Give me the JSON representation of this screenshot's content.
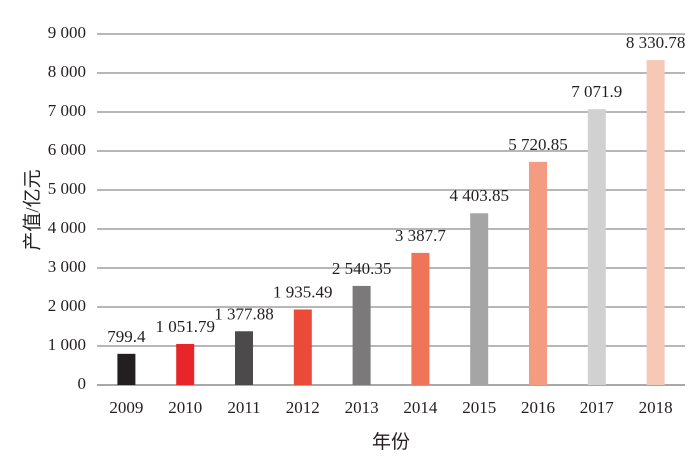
{
  "chart_data": {
    "type": "bar",
    "title": "",
    "xlabel": "年份",
    "ylabel": "产值/亿元",
    "categories": [
      "2009",
      "2010",
      "2011",
      "2012",
      "2013",
      "2014",
      "2015",
      "2016",
      "2017",
      "2018"
    ],
    "values": [
      799.4,
      1051.79,
      1377.88,
      1935.49,
      2540.35,
      3387.7,
      4403.85,
      5720.85,
      7071.9,
      8330.78
    ],
    "data_labels": [
      "799.4",
      "1 051.79",
      "1 377.88",
      "1 935.49",
      "2 540.35",
      "3 387.7",
      "4 403.85",
      "5 720.85",
      "7 071.9",
      "8 330.78"
    ],
    "bar_colors": [
      "#231f20",
      "#e8262a",
      "#4d4a4b",
      "#ea4b38",
      "#7b7979",
      "#ef7458",
      "#a6a5a5",
      "#f49c82",
      "#d2d1d1",
      "#f8c8b6"
    ],
    "ylim": [
      0,
      9000
    ],
    "yticks": [
      0,
      1000,
      2000,
      3000,
      4000,
      5000,
      6000,
      7000,
      8000,
      9000
    ],
    "ytick_labels": [
      "0",
      "1 000",
      "2 000",
      "3 000",
      "4 000",
      "5 000",
      "6 000",
      "7 000",
      "8 000",
      "9 000"
    ],
    "grid": true,
    "legend": "none"
  }
}
